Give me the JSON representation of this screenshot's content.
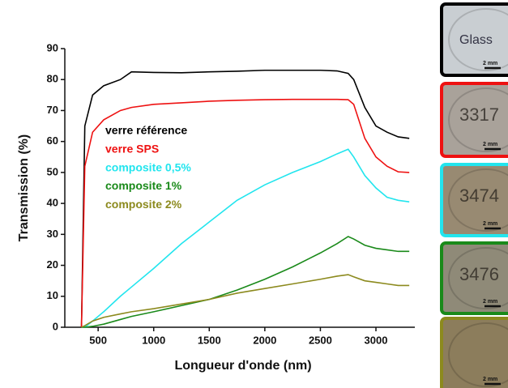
{
  "chart_data": {
    "type": "line",
    "xlabel": "Longueur d'onde (nm)",
    "ylabel": "Transmission (%)",
    "x": [
      350,
      380,
      450,
      550,
      700,
      800,
      1000,
      1250,
      1500,
      1750,
      2000,
      2250,
      2500,
      2650,
      2750,
      2800,
      2900,
      3000,
      3100,
      3200,
      3300
    ],
    "series": [
      {
        "name": "verre référence",
        "color": "#000000",
        "values": [
          0,
          65,
          75,
          78,
          80,
          82.5,
          82.3,
          82.2,
          82.5,
          82.7,
          83,
          83,
          83,
          82.8,
          82,
          80,
          71,
          65,
          63,
          61.5,
          61
        ]
      },
      {
        "name": "verre SPS",
        "color": "#ee1111",
        "values": [
          0,
          52,
          63,
          67,
          70,
          71,
          72,
          72.5,
          73,
          73.3,
          73.5,
          73.6,
          73.6,
          73.6,
          73.5,
          72,
          61,
          55,
          52,
          50.2,
          50
        ]
      },
      {
        "name": "composite 0,5%",
        "color": "#22e5ee",
        "values": [
          0,
          0,
          2,
          5,
          10,
          13,
          19,
          27,
          34,
          41,
          46,
          50,
          53.5,
          56,
          57.5,
          55,
          49,
          45,
          42,
          41,
          40.5
        ]
      },
      {
        "name": "composite 1%",
        "color": "#1a8a1a",
        "values": [
          0,
          0,
          0.3,
          1,
          2.5,
          3.5,
          5,
          7,
          9,
          12,
          15.5,
          19.5,
          24,
          27,
          29.3,
          28.5,
          26.5,
          25.5,
          25,
          24.5,
          24.5
        ]
      },
      {
        "name": "composite 2%",
        "color": "#8c8a1e",
        "values": [
          0,
          0.5,
          2,
          3.2,
          4.3,
          5,
          6,
          7.5,
          9,
          11,
          12.5,
          14,
          15.5,
          16.5,
          17,
          16.3,
          15,
          14.5,
          14,
          13.5,
          13.5
        ]
      }
    ],
    "xlim": [
      200,
      3350
    ],
    "xticks": [
      500,
      1000,
      1500,
      2000,
      2500,
      3000
    ],
    "ylim": [
      0,
      90
    ],
    "yticks": [
      0,
      10,
      20,
      30,
      40,
      50,
      60,
      70,
      80,
      90
    ],
    "legend": "upper left"
  },
  "photos": [
    {
      "label": "Glass",
      "scale": "2 mm"
    },
    {
      "label": "3317",
      "scale": "2 mm"
    },
    {
      "label": "3474",
      "scale": "2 mm"
    },
    {
      "label": "3476",
      "scale": "2 mm"
    },
    {
      "scale": "2 mm"
    }
  ]
}
